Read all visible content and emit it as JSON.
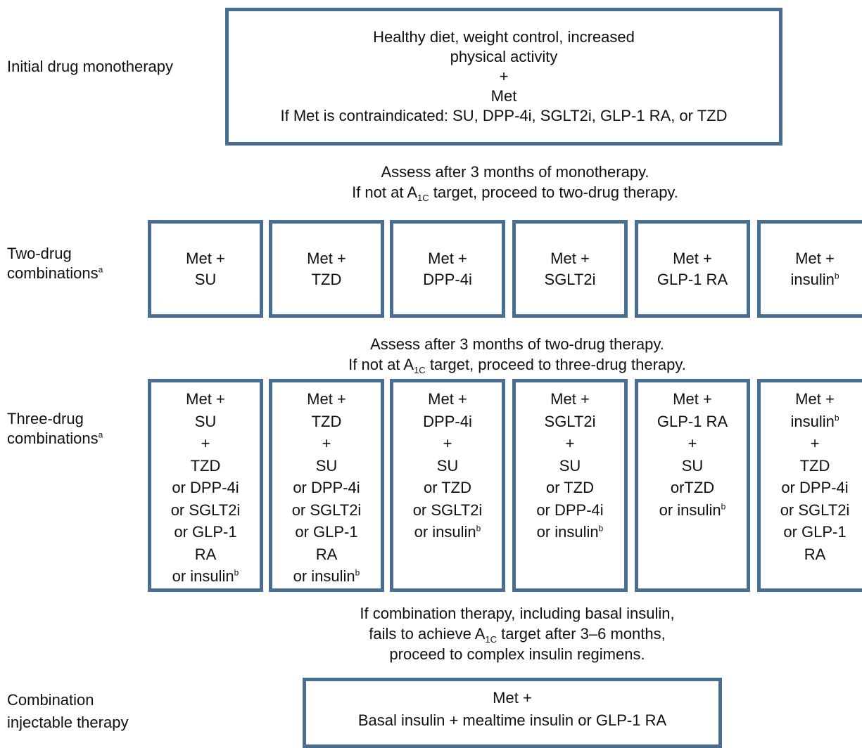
{
  "stages": {
    "mono_label": "Initial drug monotherapy",
    "two_label": "Two-drug",
    "two_label2": "combinations",
    "three_label": "Three-drug",
    "three_label2": "combinations",
    "final_label": "Combination",
    "final_label2": "injectable therapy",
    "footnote_a": "a",
    "footnote_b": "b"
  },
  "mono_box": [
    "Healthy diet, weight control, increased",
    "physical activity",
    "+",
    "Met",
    "If Met is contraindicated: SU, DPP-4i, SGLT2i, GLP-1 RA, or TZD"
  ],
  "note1": {
    "line1": "Assess after 3 months of monotherapy.",
    "pre": "If not at A",
    "sub": "1C",
    "post": " target, proceed to two-drug therapy."
  },
  "two_drug": [
    {
      "l1": "Met +",
      "l2": "SU",
      "sup": ""
    },
    {
      "l1": "Met +",
      "l2": "TZD",
      "sup": ""
    },
    {
      "l1": "Met +",
      "l2": "DPP-4i",
      "sup": ""
    },
    {
      "l1": "Met +",
      "l2": "SGLT2i",
      "sup": ""
    },
    {
      "l1": "Met +",
      "l2": "GLP-1 RA",
      "sup": ""
    },
    {
      "l1": "Met +",
      "l2": "insulin",
      "sup": "b"
    }
  ],
  "note2": {
    "line1": "Assess after 3 months of two-drug therapy.",
    "pre": "If not at A",
    "sub": "1C",
    "post": " target, proceed to three-drug therapy."
  },
  "three_drug": [
    [
      {
        "t": "Met +"
      },
      {
        "t": "SU"
      },
      {
        "t": "+"
      },
      {
        "t": "TZD"
      },
      {
        "t": "or DPP-4i"
      },
      {
        "t": "or SGLT2i"
      },
      {
        "t": "or GLP-1"
      },
      {
        "t": "RA"
      },
      {
        "t": "or insulin",
        "s": "b"
      }
    ],
    [
      {
        "t": "Met +"
      },
      {
        "t": "TZD"
      },
      {
        "t": "+"
      },
      {
        "t": "SU"
      },
      {
        "t": "or DPP-4i"
      },
      {
        "t": "or SGLT2i"
      },
      {
        "t": "or GLP-1"
      },
      {
        "t": "RA"
      },
      {
        "t": "or insulin",
        "s": "b"
      }
    ],
    [
      {
        "t": "Met +"
      },
      {
        "t": "DPP-4i"
      },
      {
        "t": "+"
      },
      {
        "t": "SU"
      },
      {
        "t": "or TZD"
      },
      {
        "t": "or SGLT2i"
      },
      {
        "t": "or insulin",
        "s": "b"
      }
    ],
    [
      {
        "t": "Met +"
      },
      {
        "t": "SGLT2i"
      },
      {
        "t": "+"
      },
      {
        "t": "SU"
      },
      {
        "t": "or TZD"
      },
      {
        "t": "or DPP-4i"
      },
      {
        "t": "or insulin",
        "s": "b"
      }
    ],
    [
      {
        "t": "Met +"
      },
      {
        "t": "GLP-1 RA"
      },
      {
        "t": "+"
      },
      {
        "t": "SU"
      },
      {
        "t": "orTZD"
      },
      {
        "t": "or insulin",
        "s": "b"
      }
    ],
    [
      {
        "t": "Met +"
      },
      {
        "t": "insulin",
        "s": "b"
      },
      {
        "t": "+"
      },
      {
        "t": "TZD"
      },
      {
        "t": "or DPP-4i"
      },
      {
        "t": "or SGLT2i"
      },
      {
        "t": "or GLP-1"
      },
      {
        "t": "RA"
      }
    ]
  ],
  "note3": {
    "line1": "If combination therapy, including basal insulin,",
    "pre": "fails to achieve A",
    "sub": "1C",
    "post": " target after 3–6 months,",
    "line3": "proceed to complex insulin regimens."
  },
  "final_box": {
    "line1": "Met +",
    "line2": "Basal insulin + mealtime insulin or GLP-1 RA"
  },
  "colors": {
    "box_border": "#4a6d93"
  }
}
